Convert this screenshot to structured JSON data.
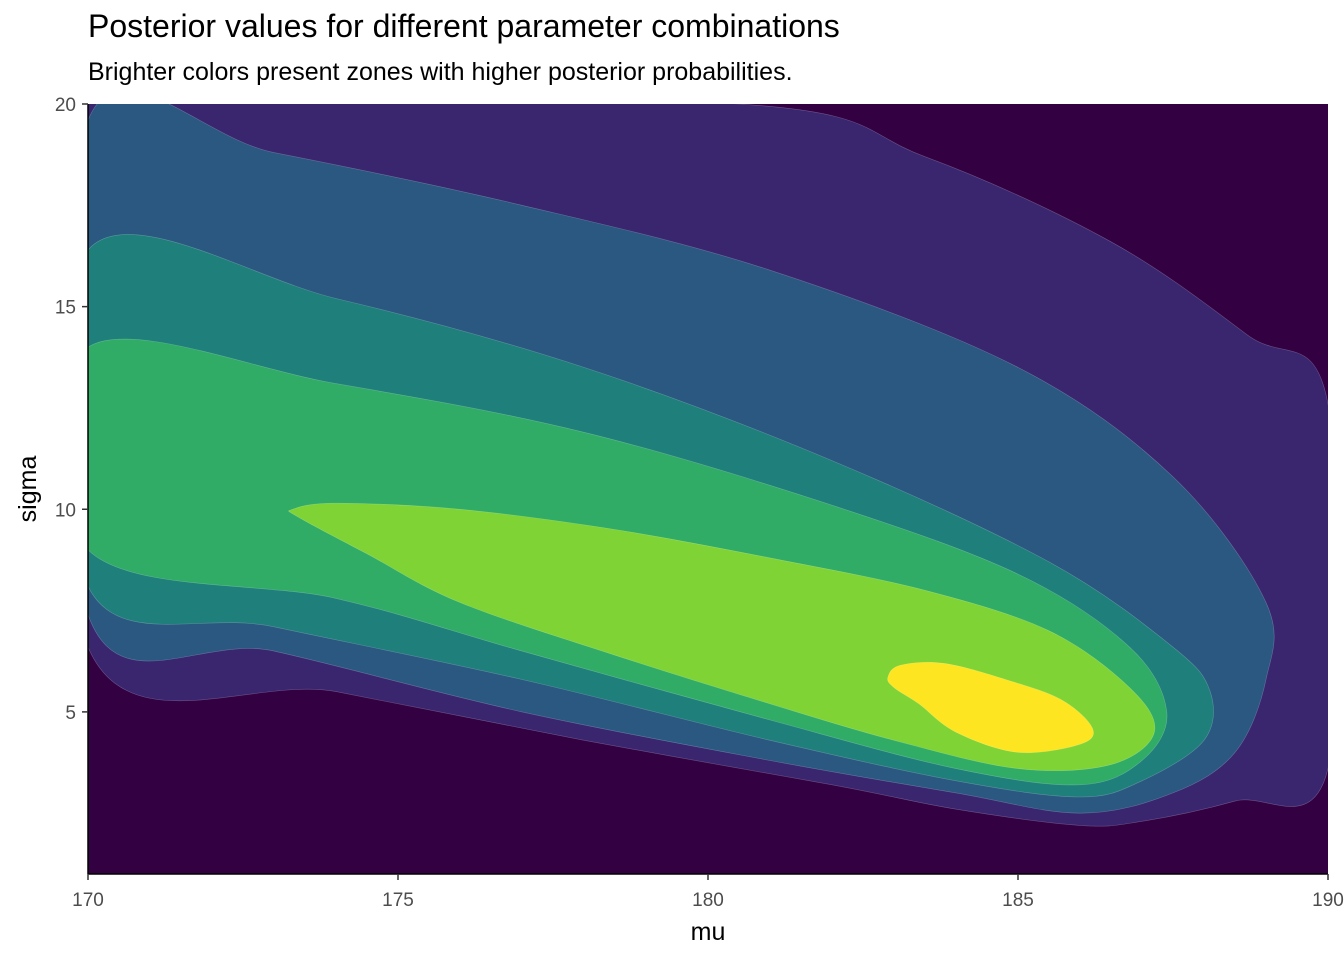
{
  "chart_data": {
    "type": "contour",
    "title": "Posterior values for different parameter combinations",
    "subtitle": "Brighter colors present zones with higher posterior probabilities.",
    "xlabel": "mu",
    "ylabel": "sigma",
    "xlim": [
      170,
      190
    ],
    "ylim": [
      1,
      20
    ],
    "x_ticks": [
      170,
      175,
      180,
      185,
      190
    ],
    "y_ticks": [
      5,
      10,
      15,
      20
    ],
    "background_color": "#330042",
    "palette": [
      "#3a266f",
      "#2a5880",
      "#1f7f7a",
      "#30ac66",
      "#7fd334",
      "#fde521"
    ],
    "grid": false,
    "legend": "none",
    "contour_levels": [
      {
        "level": 1,
        "color": "#3a266f",
        "points": [
          [
            170,
            20
          ],
          [
            180.5,
            20
          ],
          [
            183.5,
            18.7
          ],
          [
            186.5,
            16.6
          ],
          [
            188.7,
            14.3
          ],
          [
            190,
            12.6
          ],
          [
            190,
            3.6
          ],
          [
            188.5,
            2.8
          ],
          [
            187,
            2.3
          ],
          [
            186,
            2.2
          ],
          [
            184,
            2.6
          ],
          [
            182,
            3.2
          ],
          [
            178,
            4.3
          ],
          [
            174,
            5.5
          ],
          [
            170,
            6.6
          ]
        ]
      },
      {
        "level": 2,
        "color": "#2a5880",
        "points": [
          [
            170,
            19.6
          ],
          [
            173,
            18.8
          ],
          [
            177,
            17.5
          ],
          [
            181,
            15.9
          ],
          [
            185,
            13.5
          ],
          [
            187.5,
            10.8
          ],
          [
            189,
            7.7
          ],
          [
            189,
            5.8
          ],
          [
            188.5,
            4.0
          ],
          [
            187.5,
            3.0
          ],
          [
            186,
            2.5
          ],
          [
            184,
            3.0
          ],
          [
            181,
            3.8
          ],
          [
            177,
            5.0
          ],
          [
            173,
            6.5
          ],
          [
            170,
            7.4
          ]
        ]
      },
      {
        "level": 3,
        "color": "#1f7f7a",
        "points": [
          [
            170,
            16.4
          ],
          [
            174,
            15.2
          ],
          [
            178,
            13.5
          ],
          [
            182,
            11.2
          ],
          [
            185.5,
            8.7
          ],
          [
            187.5,
            6.6
          ],
          [
            188.1,
            5.5
          ],
          [
            188,
            4.3
          ],
          [
            187,
            3.3
          ],
          [
            186,
            2.9
          ],
          [
            184,
            3.3
          ],
          [
            181,
            4.3
          ],
          [
            177,
            5.8
          ],
          [
            173,
            7.1
          ],
          [
            170,
            8.1
          ]
        ]
      },
      {
        "level": 4,
        "color": "#30ac66",
        "points": [
          [
            170,
            14
          ],
          [
            174,
            13.1
          ],
          [
            178,
            11.9
          ],
          [
            182,
            10.1
          ],
          [
            185,
            8.4
          ],
          [
            186.8,
            6.6
          ],
          [
            187.4,
            5.0
          ],
          [
            187,
            3.8
          ],
          [
            186,
            3.2
          ],
          [
            184,
            3.6
          ],
          [
            181,
            4.8
          ],
          [
            177,
            6.5
          ],
          [
            174,
            7.8
          ],
          [
            170,
            9.0
          ]
        ]
      },
      {
        "level": 5,
        "color": "#7fd334",
        "points": [
          [
            173.3,
            10.0
          ],
          [
            174,
            10.15
          ],
          [
            176,
            10.0
          ],
          [
            178.5,
            9.5
          ],
          [
            181,
            8.8
          ],
          [
            183.5,
            8.0
          ],
          [
            185.5,
            7.0
          ],
          [
            186.8,
            5.6
          ],
          [
            187.2,
            4.5
          ],
          [
            186.5,
            3.7
          ],
          [
            185,
            3.6
          ],
          [
            183,
            4.3
          ],
          [
            181,
            5.2
          ],
          [
            178.5,
            6.4
          ],
          [
            176,
            7.7
          ],
          [
            174.5,
            8.9
          ],
          [
            173.4,
            9.8
          ]
        ]
      },
      {
        "level": 6,
        "color": "#fde521",
        "points": [
          [
            182.9,
            5.85
          ],
          [
            183.1,
            6.15
          ],
          [
            183.8,
            6.2
          ],
          [
            184.8,
            5.8
          ],
          [
            185.7,
            5.3
          ],
          [
            186.2,
            4.6
          ],
          [
            186,
            4.2
          ],
          [
            185,
            4.0
          ],
          [
            184,
            4.5
          ],
          [
            183.4,
            5.2
          ],
          [
            183,
            5.6
          ]
        ]
      }
    ]
  }
}
